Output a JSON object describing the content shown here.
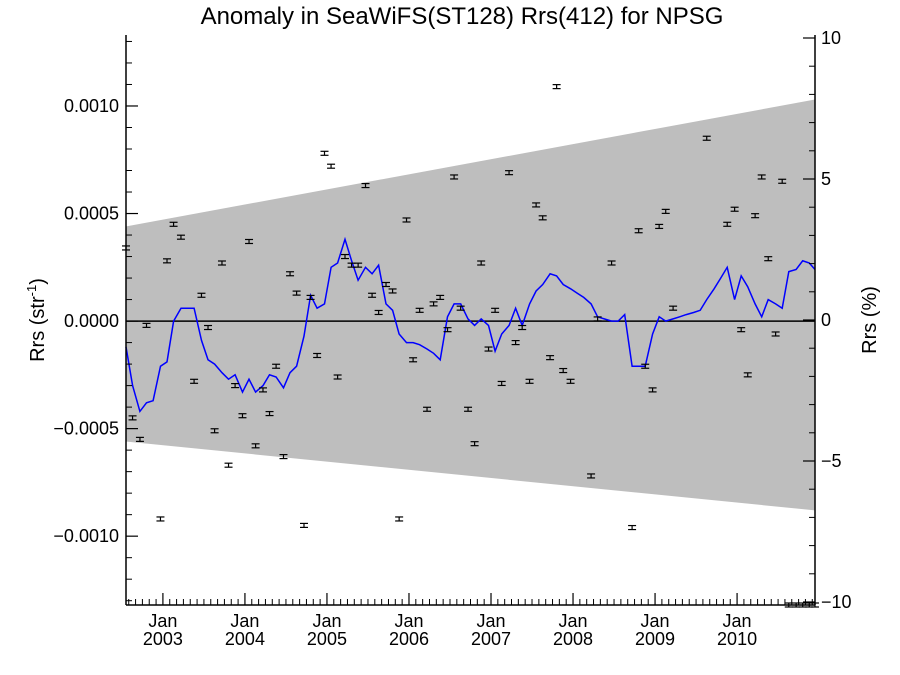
{
  "chart_data": {
    "type": "scatter",
    "title": "Anomaly in SeaWiFS(ST128) Rrs(412) for NPSG",
    "ylabel_left": "Rrs (str",
    "ylabel_left_sup": "-1",
    "ylabel_left_close": ")",
    "ylabel_right": "Rrs (%)",
    "xlabel": "",
    "xlim": [
      2002.55,
      2010.95
    ],
    "ylim": [
      -0.00132,
      0.00133
    ],
    "ylim_right": [
      -10,
      10
    ],
    "grid": false,
    "colors": {
      "band": "#bebebe",
      "line": "#0000ff",
      "points": "#000000",
      "zero_line": "#000000"
    },
    "left_ticks": {
      "major": [
        -0.001,
        -0.0005,
        0.0,
        0.0005,
        0.001
      ],
      "labels": [
        "−0.0010",
        "−0.0005",
        "0.0000",
        "0.0005",
        "0.0010"
      ]
    },
    "right_ticks": {
      "major": [
        -10,
        -5,
        0,
        5,
        10
      ],
      "labels": [
        "−10",
        "−5",
        "0",
        "5",
        "10"
      ]
    },
    "x_ticks": [
      {
        "x": 2003.0,
        "month": "Jan",
        "year": "2003"
      },
      {
        "x": 2004.0,
        "month": "Jan",
        "year": "2004"
      },
      {
        "x": 2005.0,
        "month": "Jan",
        "year": "2005"
      },
      {
        "x": 2006.0,
        "month": "Jan",
        "year": "2006"
      },
      {
        "x": 2007.0,
        "month": "Jan",
        "year": "2007"
      },
      {
        "x": 2008.0,
        "month": "Jan",
        "year": "2008"
      },
      {
        "x": 2009.0,
        "month": "Jan",
        "year": "2009"
      },
      {
        "x": 2010.0,
        "month": "Jan",
        "year": "2010"
      }
    ],
    "band": {
      "x": [
        2002.55,
        2010.95
      ],
      "upper": [
        0.00044,
        0.00103
      ],
      "lower": [
        -0.00056,
        -0.00088
      ]
    },
    "series": [
      {
        "type": "line",
        "x": [
          2002.55,
          2002.63,
          2002.72,
          2002.8,
          2002.88,
          2002.97,
          2003.05,
          2003.13,
          2003.22,
          2003.3,
          2003.38,
          2003.47,
          2003.55,
          2003.63,
          2003.72,
          2003.8,
          2003.88,
          2003.97,
          2004.05,
          2004.13,
          2004.22,
          2004.3,
          2004.38,
          2004.47,
          2004.55,
          2004.63,
          2004.72,
          2004.8,
          2004.88,
          2004.97,
          2005.05,
          2005.13,
          2005.22,
          2005.3,
          2005.38,
          2005.47,
          2005.55,
          2005.63,
          2005.72,
          2005.8,
          2005.88,
          2005.97,
          2006.05,
          2006.13,
          2006.22,
          2006.3,
          2006.38,
          2006.47,
          2006.55,
          2006.63,
          2006.72,
          2006.8,
          2006.88,
          2006.97,
          2007.05,
          2007.13,
          2007.22,
          2007.3,
          2007.38,
          2007.47,
          2007.55,
          2007.63,
          2007.72,
          2007.8,
          2007.88,
          2007.97,
          2008.05,
          2008.13,
          2008.22,
          2008.3,
          2008.38,
          2008.47,
          2008.55,
          2008.63,
          2008.72,
          2008.8,
          2008.88,
          2008.97,
          2009.05,
          2009.13,
          2009.22,
          2009.3,
          2009.38,
          2009.47,
          2009.55,
          2009.63,
          2009.72,
          2009.8,
          2009.88,
          2009.97,
          2010.05,
          2010.13,
          2010.22,
          2010.3,
          2010.38,
          2010.47,
          2010.55,
          2010.63,
          2010.72,
          2010.8,
          2010.88,
          2010.95
        ],
        "y": [
          -0.00012,
          -0.0003,
          -0.00042,
          -0.00038,
          -0.00037,
          -0.00021,
          -0.00019,
          0.0,
          6e-05,
          6e-05,
          6e-05,
          -9e-05,
          -0.00018,
          -0.0002,
          -0.00024,
          -0.00027,
          -0.00025,
          -0.00033,
          -0.00027,
          -0.00033,
          -0.0003,
          -0.00025,
          -0.00026,
          -0.00031,
          -0.00024,
          -0.00021,
          -7e-05,
          0.00012,
          6e-05,
          8e-05,
          0.00025,
          0.00027,
          0.00038,
          0.00028,
          0.00019,
          0.00025,
          0.00022,
          0.00026,
          8e-05,
          5e-05,
          -6e-05,
          -0.0001,
          -0.0001,
          -0.00011,
          -0.00013,
          -0.00015,
          -0.00018,
          2e-05,
          8e-05,
          8e-05,
          1e-05,
          -2e-05,
          1e-05,
          -2e-05,
          -0.00014,
          -6e-05,
          -2e-05,
          6e-05,
          -2e-05,
          8e-05,
          0.00014,
          0.00017,
          0.00022,
          0.00021,
          0.00017,
          0.00015,
          0.00013,
          0.00011,
          8e-05,
          2e-05,
          1e-05,
          0.0,
          0.0,
          3e-05,
          -0.00021,
          -0.00021,
          -0.00021,
          -6e-05,
          2e-05,
          0.0,
          1e-05,
          2e-05,
          3e-05,
          4e-05,
          5e-05,
          0.0001,
          0.00015,
          0.0002,
          0.00025,
          0.0001,
          0.00021,
          0.00016,
          8e-05,
          2e-05,
          0.0001,
          8e-05,
          6e-05,
          0.00023,
          0.00024,
          0.00028,
          0.00027,
          0.00024
        ]
      },
      {
        "type": "scatter",
        "x": [
          2002.55,
          2002.63,
          2002.72,
          2002.8,
          2002.97,
          2003.05,
          2003.13,
          2003.22,
          2003.38,
          2003.47,
          2003.55,
          2003.63,
          2003.72,
          2003.8,
          2003.88,
          2003.97,
          2004.05,
          2004.13,
          2004.22,
          2004.3,
          2004.38,
          2004.47,
          2004.55,
          2004.63,
          2004.72,
          2004.8,
          2004.88,
          2004.97,
          2005.05,
          2005.13,
          2005.22,
          2005.3,
          2005.38,
          2005.47,
          2005.55,
          2005.63,
          2005.72,
          2005.8,
          2005.88,
          2005.97,
          2006.05,
          2006.13,
          2006.22,
          2006.3,
          2006.38,
          2006.47,
          2006.55,
          2006.63,
          2006.72,
          2006.8,
          2006.88,
          2006.97,
          2007.05,
          2007.13,
          2007.22,
          2007.3,
          2007.38,
          2007.47,
          2007.55,
          2007.63,
          2007.72,
          2007.8,
          2007.88,
          2007.97,
          2008.22,
          2008.3,
          2008.47,
          2008.72,
          2008.8,
          2008.88,
          2008.97,
          2009.05,
          2009.13,
          2009.22,
          2009.63,
          2009.88,
          2009.97,
          2010.05,
          2010.13,
          2010.22,
          2010.3,
          2010.38,
          2010.47,
          2010.55,
          2010.63,
          2010.72,
          2010.8,
          2010.88,
          2010.95
        ],
        "y": [
          0.00034,
          -0.00045,
          -0.00055,
          -2e-05,
          -0.00092,
          0.00028,
          0.00045,
          0.00039,
          -0.00028,
          0.00012,
          -3e-05,
          -0.00051,
          0.00027,
          -0.00067,
          -0.0003,
          -0.00044,
          0.00037,
          -0.00058,
          -0.00032,
          -0.00043,
          -0.00021,
          -0.00063,
          0.00022,
          0.00013,
          -0.00095,
          0.00011,
          -0.00016,
          0.00078,
          0.00072,
          -0.00026,
          0.0003,
          0.00026,
          0.00026,
          0.00063,
          0.00012,
          4e-05,
          0.00017,
          0.00014,
          -0.00092,
          0.00047,
          -0.00018,
          5e-05,
          -0.00041,
          8e-05,
          0.00011,
          -4e-05,
          0.00067,
          6e-05,
          -0.00041,
          -0.00057,
          0.00027,
          -0.00013,
          5e-05,
          -0.00029,
          0.00069,
          -0.0001,
          -3e-05,
          -0.00028,
          0.00054,
          0.00048,
          -0.00017,
          0.00109,
          -0.00023,
          -0.00028,
          -0.00072,
          1e-05,
          0.00027,
          -0.00096,
          0.00042,
          -0.00021,
          -0.00032,
          0.00044,
          0.00051,
          6e-05,
          0.00085,
          0.00045,
          0.00052,
          -4e-05,
          -0.00025,
          0.00049,
          0.00067,
          0.00029,
          -6e-05,
          0.00065,
          -0.00132,
          -0.00132,
          -0.00132,
          -0.00132,
          -0.00132
        ]
      }
    ]
  }
}
